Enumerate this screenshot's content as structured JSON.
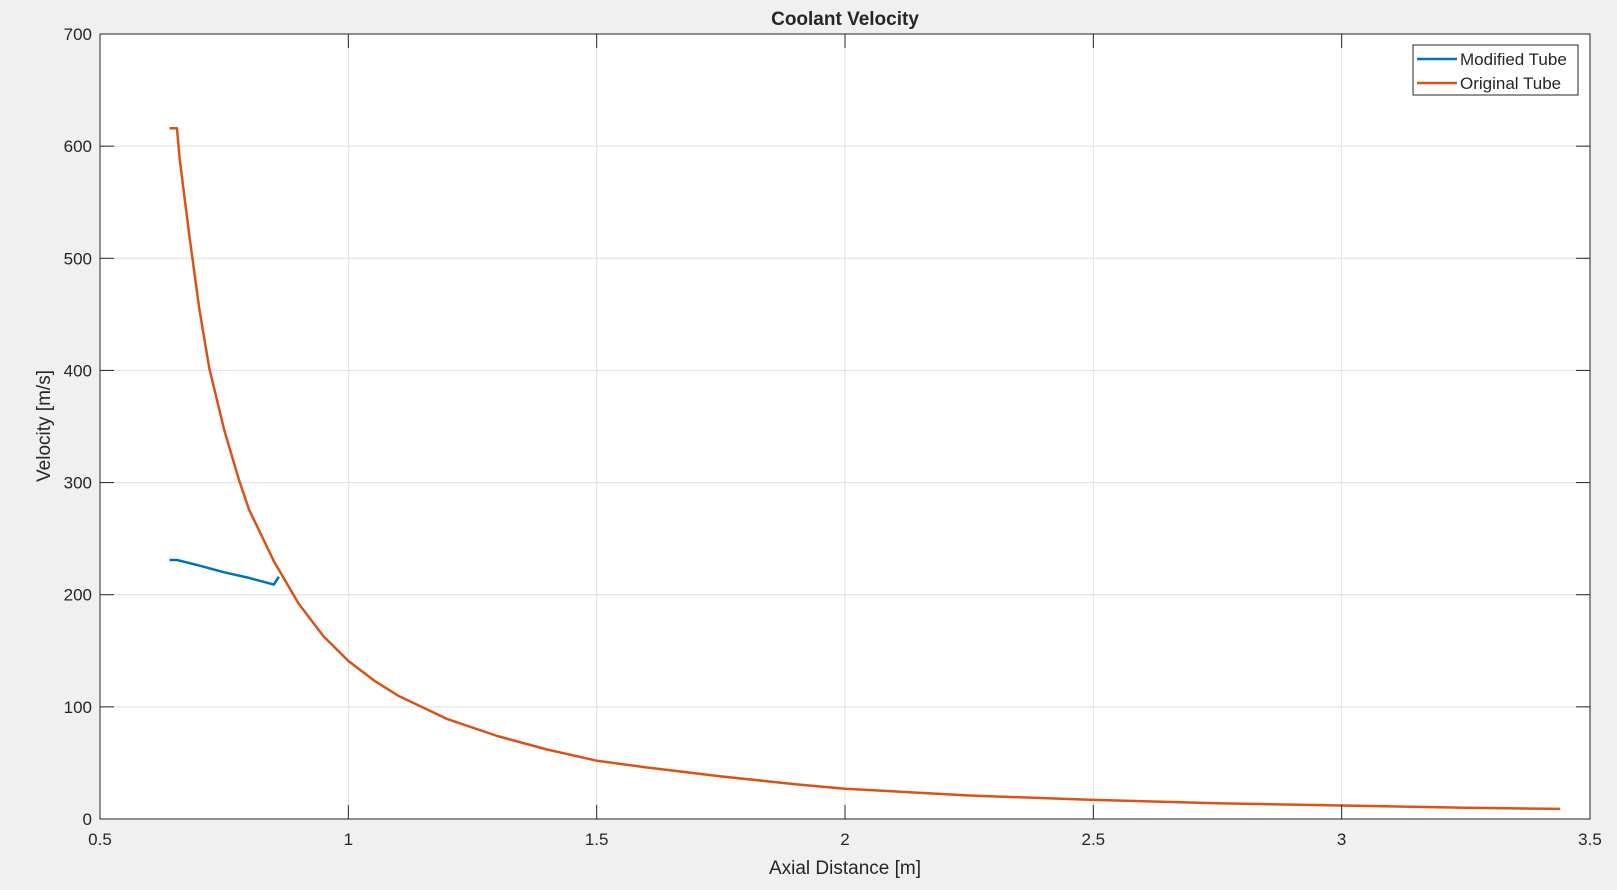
{
  "figure": {
    "background": "#f0f0f0",
    "axes_background": "#ffffff"
  },
  "chart_data": {
    "type": "line",
    "title": "Coolant Velocity",
    "xlabel": "Axial Distance [m]",
    "ylabel": "Velocity [m/s]",
    "xlim": [
      0.5,
      3.5
    ],
    "ylim": [
      0,
      700
    ],
    "xticks": [
      0.5,
      1,
      1.5,
      2,
      2.5,
      3,
      3.5
    ],
    "xtick_labels": [
      "0.5",
      "1",
      "1.5",
      "2",
      "2.5",
      "3",
      "3.5"
    ],
    "yticks": [
      0,
      100,
      200,
      300,
      400,
      500,
      600,
      700
    ],
    "ytick_labels": [
      "0",
      "100",
      "200",
      "300",
      "400",
      "500",
      "600",
      "700"
    ],
    "grid": true,
    "legend_position": "top-right",
    "series": [
      {
        "name": "Modified Tube",
        "color": "#0072bd",
        "points": [
          [
            0.64,
            231
          ],
          [
            0.655,
            231
          ],
          [
            0.7,
            226
          ],
          [
            0.75,
            220
          ],
          [
            0.8,
            215
          ],
          [
            0.85,
            209
          ],
          [
            0.86,
            216
          ]
        ]
      },
      {
        "name": "Original Tube",
        "color": "#d95319",
        "points": [
          [
            0.64,
            616
          ],
          [
            0.655,
            616
          ],
          [
            0.66,
            590
          ],
          [
            0.67,
            555
          ],
          [
            0.68,
            520
          ],
          [
            0.7,
            455
          ],
          [
            0.72,
            402
          ],
          [
            0.75,
            347
          ],
          [
            0.78,
            302
          ],
          [
            0.8,
            276
          ],
          [
            0.85,
            230
          ],
          [
            0.9,
            192
          ],
          [
            0.95,
            163
          ],
          [
            1.0,
            141
          ],
          [
            1.05,
            124
          ],
          [
            1.1,
            110
          ],
          [
            1.2,
            89
          ],
          [
            1.3,
            74
          ],
          [
            1.4,
            62
          ],
          [
            1.5,
            52
          ],
          [
            1.6,
            46
          ],
          [
            1.75,
            38
          ],
          [
            1.9,
            31
          ],
          [
            2.0,
            27
          ],
          [
            2.25,
            21
          ],
          [
            2.5,
            17
          ],
          [
            2.75,
            14
          ],
          [
            3.0,
            12
          ],
          [
            3.25,
            10
          ],
          [
            3.44,
            9
          ]
        ]
      }
    ]
  }
}
